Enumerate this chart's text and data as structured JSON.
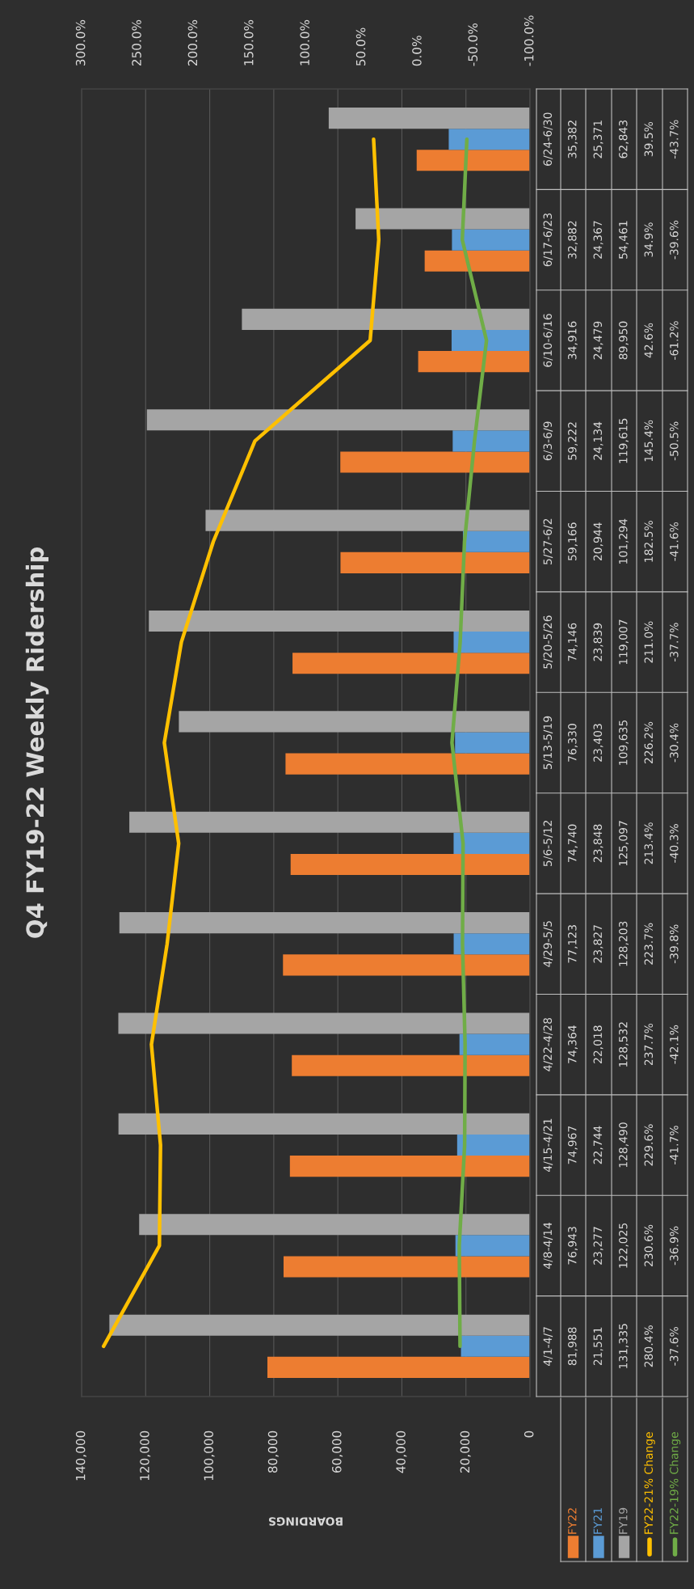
{
  "chart_data": {
    "type": "bar",
    "orientation": "horizontal",
    "title": "Q4 FY19-22 Weekly Ridership",
    "xlabel": "BOARDINGS",
    "categories": [
      "6/24-6/30",
      "6/17-6/23",
      "6/10-6/16",
      "6/3-6/9",
      "5/27-6/2",
      "5/20-5/26",
      "5/13-5/19",
      "5/6-5/12",
      "4/29-5/5",
      "4/22-4/28",
      "4/15-4/21",
      "4/8-4/14",
      "4/1-4/7"
    ],
    "series": [
      {
        "name": "FY22",
        "color": "#ed7d31",
        "values": [
          35382,
          32882,
          34916,
          59222,
          59166,
          74146,
          76330,
          74740,
          77123,
          74364,
          74967,
          76943,
          81988
        ],
        "value_labels": [
          "35,382",
          "32,882",
          "34,916",
          "59,222",
          "59,166",
          "74,146",
          "76,330",
          "74,740",
          "77,123",
          "74,364",
          "74,967",
          "76,943",
          "81,988"
        ]
      },
      {
        "name": "FY21",
        "color": "#5b9bd5",
        "values": [
          25371,
          24367,
          24479,
          24134,
          20944,
          23839,
          23403,
          23848,
          23827,
          22018,
          22744,
          23277,
          21551
        ],
        "value_labels": [
          "25,371",
          "24,367",
          "24,479",
          "24,134",
          "20,944",
          "23,839",
          "23,403",
          "23,848",
          "23,827",
          "22,018",
          "22,744",
          "23,277",
          "21,551"
        ]
      },
      {
        "name": "FY19",
        "color": "#a5a5a5",
        "values": [
          62843,
          54461,
          89950,
          119615,
          101294,
          119007,
          109635,
          125097,
          128203,
          128532,
          128490,
          122025,
          131335
        ],
        "value_labels": [
          "62,843",
          "54,461",
          "89,950",
          "119,615",
          "101,294",
          "119,007",
          "109,635",
          "125,097",
          "128,203",
          "128,532",
          "128,490",
          "122,025",
          "131,335"
        ]
      },
      {
        "name": "FY22-21% Change",
        "type": "line",
        "axis": "x2",
        "color": "#ffc000",
        "values": [
          39.5,
          34.9,
          42.6,
          145.4,
          182.5,
          211.0,
          226.2,
          213.4,
          223.7,
          237.7,
          229.6,
          230.6,
          280.4
        ],
        "value_labels": [
          "39.5%",
          "34.9%",
          "42.6%",
          "145.4%",
          "182.5%",
          "211.0%",
          "226.2%",
          "213.4%",
          "223.7%",
          "237.7%",
          "229.6%",
          "230.6%",
          "280.4%"
        ]
      },
      {
        "name": "FY22-19% Change",
        "type": "line",
        "axis": "x2",
        "color": "#70ad47",
        "values": [
          -43.7,
          -39.6,
          -61.2,
          -50.5,
          -41.6,
          -37.7,
          -30.4,
          -40.3,
          -39.8,
          -42.1,
          -41.7,
          -36.9,
          -37.6
        ],
        "value_labels": [
          "-43.7%",
          "-39.6%",
          "-61.2%",
          "-50.5%",
          "-41.6%",
          "-37.7%",
          "-30.4%",
          "-40.3%",
          "-39.8%",
          "-42.1%",
          "-41.7%",
          "-36.9%",
          "-37.6%"
        ]
      }
    ],
    "xlim": [
      140000,
      0
    ],
    "xticks": [
      {
        "value": 0,
        "label": "0"
      },
      {
        "value": 20000,
        "label": "20,000"
      },
      {
        "value": 40000,
        "label": "40,000"
      },
      {
        "value": 60000,
        "label": "60,000"
      },
      {
        "value": 80000,
        "label": "80,000"
      },
      {
        "value": 100000,
        "label": "100,000"
      },
      {
        "value": 120000,
        "label": "120,000"
      },
      {
        "value": 140000,
        "label": "140,000"
      }
    ],
    "x2lim": [
      300,
      -100
    ],
    "x2ticks": [
      {
        "value": -100,
        "label": "-100.0%"
      },
      {
        "value": -50,
        "label": "-50.0%"
      },
      {
        "value": 0,
        "label": "0.0%"
      },
      {
        "value": 50,
        "label": "50.0%"
      },
      {
        "value": 100,
        "label": "100.0%"
      },
      {
        "value": 150,
        "label": "150.0%"
      },
      {
        "value": 200,
        "label": "200.0%"
      },
      {
        "value": 250,
        "label": "250.0%"
      },
      {
        "value": 300,
        "label": "300.0%"
      }
    ],
    "grid": "x",
    "legend": "bottom right"
  }
}
